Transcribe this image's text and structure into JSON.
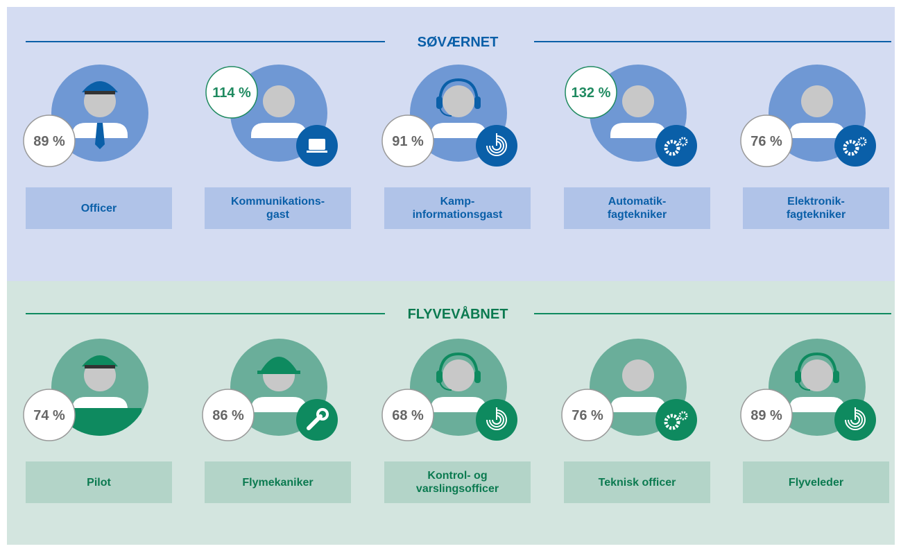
{
  "sections": [
    {
      "title": "SØVÆRNET",
      "items": [
        {
          "label": "Officer",
          "value": "89 %"
        },
        {
          "label": "Kommunikations-\ngast",
          "value": "114 %"
        },
        {
          "label": "Kamp-\ninformationsgast",
          "value": "91 %"
        },
        {
          "label": "Automatik-\nfagtekniker",
          "value": "132 %"
        },
        {
          "label": "Elektronik-\nfagtekniker",
          "value": "76 %"
        }
      ]
    },
    {
      "title": "FLYVEVÅBNET",
      "items": [
        {
          "label": "Pilot",
          "value": "74 %"
        },
        {
          "label": "Flymekaniker",
          "value": "86 %"
        },
        {
          "label": "Kontrol- og\nvarslingsofficer",
          "value": "68 %"
        },
        {
          "label": "Teknisk officer",
          "value": "76 %"
        },
        {
          "label": "Flyveleder",
          "value": "89 %"
        }
      ]
    }
  ]
}
